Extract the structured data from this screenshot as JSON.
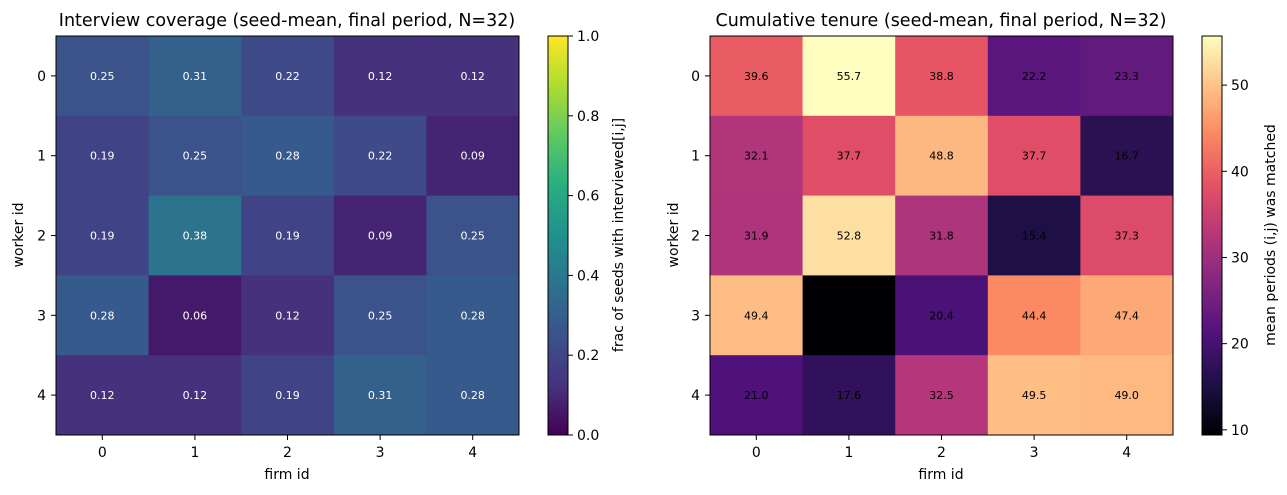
{
  "chart_data": [
    {
      "type": "heatmap",
      "title": "Interview coverage (seed-mean, final period, N=32)",
      "xlabel": "firm id",
      "ylabel": "worker id",
      "x": [
        "0",
        "1",
        "2",
        "3",
        "4"
      ],
      "y": [
        "0",
        "1",
        "2",
        "3",
        "4"
      ],
      "values": [
        [
          0.25,
          0.31,
          0.22,
          0.12,
          0.12
        ],
        [
          0.19,
          0.25,
          0.28,
          0.22,
          0.09
        ],
        [
          0.19,
          0.38,
          0.19,
          0.09,
          0.25
        ],
        [
          0.28,
          0.06,
          0.12,
          0.25,
          0.28
        ],
        [
          0.12,
          0.12,
          0.19,
          0.31,
          0.28
        ]
      ],
      "value_format": 2,
      "colormap": "viridis",
      "vmin": 0.0,
      "vmax": 1.0,
      "colorbar": {
        "label": "frac of seeds with interviewed[i,j]",
        "ticks": [
          "0.0",
          "0.2",
          "0.4",
          "0.6",
          "0.8",
          "1.0"
        ],
        "tick_values": [
          0.0,
          0.2,
          0.4,
          0.6,
          0.8,
          1.0
        ]
      },
      "label_color": "#ffffff"
    },
    {
      "type": "heatmap",
      "title": "Cumulative tenure (seed-mean, final period, N=32)",
      "xlabel": "firm id",
      "ylabel": "worker id",
      "x": [
        "0",
        "1",
        "2",
        "3",
        "4"
      ],
      "y": [
        "0",
        "1",
        "2",
        "3",
        "4"
      ],
      "values": [
        [
          39.6,
          55.7,
          38.8,
          22.2,
          23.3
        ],
        [
          32.1,
          37.7,
          48.8,
          37.7,
          16.7
        ],
        [
          31.9,
          52.8,
          31.8,
          15.4,
          37.3
        ],
        [
          49.4,
          9.4,
          20.4,
          44.4,
          47.4
        ],
        [
          21.0,
          17.6,
          32.5,
          49.5,
          49.0
        ]
      ],
      "value_format": 1,
      "colormap": "magma",
      "vmin": 9.4,
      "vmax": 55.7,
      "colorbar": {
        "label": "mean periods (i,j) was matched",
        "ticks": [
          "10",
          "20",
          "30",
          "40",
          "50"
        ],
        "tick_values": [
          10,
          20,
          30,
          40,
          50
        ]
      },
      "label_color": "#000000"
    }
  ]
}
